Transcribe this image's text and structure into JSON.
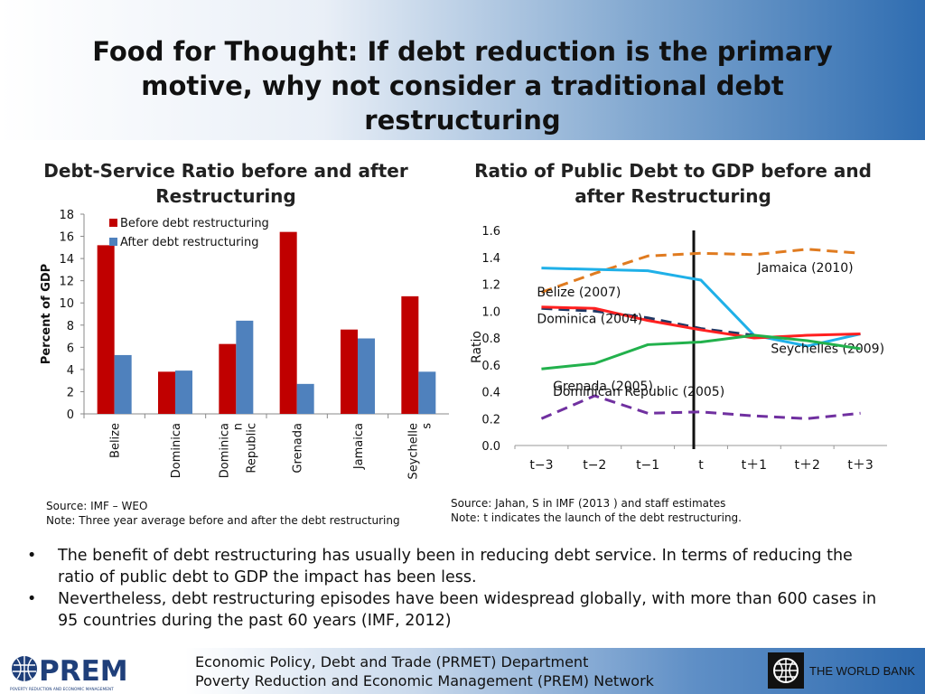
{
  "slide": {
    "title": "Food for Thought: If debt  reduction is the primary motive, why not  consider a traditional debt restructuring"
  },
  "left_panel": {
    "title": "Debt-Service Ratio before and after Restructuring",
    "source": "Source: IMF – WEO",
    "note": "Note: Three year average before and after the debt restructuring"
  },
  "right_panel": {
    "title": "Ratio of Public Debt to GDP before and after Restructuring",
    "source": "Source: Jahan, S in IMF (2013 ) and staff estimates",
    "note": "Note: t indicates the launch of the debt restructuring."
  },
  "chart_data": [
    {
      "type": "bar",
      "title": "Debt-Service Ratio before and after Restructuring",
      "ylabel": "Percent of GDP",
      "xlabel": "",
      "ylim": [
        0,
        18
      ],
      "yticks": [
        0,
        2,
        4,
        6,
        8,
        10,
        12,
        14,
        16,
        18
      ],
      "categories": [
        "Belize",
        "Dominica",
        "Dominican Republic",
        "Grenada",
        "Jamaica",
        "Seychelles"
      ],
      "category_labels": [
        [
          "Belize"
        ],
        [
          "Dominica"
        ],
        [
          "Dominica",
          "n",
          "Republic"
        ],
        [
          "Grenada"
        ],
        [
          "Jamaica"
        ],
        [
          "Seychelle",
          "s"
        ]
      ],
      "series": [
        {
          "name": "Before debt restructuring",
          "color": "#c00000",
          "values": [
            15.2,
            3.8,
            6.3,
            16.4,
            7.6,
            10.6
          ]
        },
        {
          "name": "After debt restructuring",
          "color": "#4f81bd",
          "values": [
            5.3,
            3.9,
            8.4,
            2.7,
            6.8,
            3.8
          ]
        }
      ],
      "legend_position": "top-left",
      "grid": false
    },
    {
      "type": "line",
      "title": "Ratio of Public Debt to GDP before and after Restructuring",
      "ylabel": "Ratio",
      "xlabel": "",
      "x": [
        "t−3",
        "t−2",
        "t−1",
        "t",
        "t＋1",
        "t＋2",
        "t＋3"
      ],
      "ylim": [
        0.0,
        1.6
      ],
      "yticks": [
        "0.0",
        "0.2",
        "0.4",
        "0.6",
        "0.8",
        "1.0",
        "1.2",
        "1.4",
        "1.6"
      ],
      "marker_line_at": "t",
      "series": [
        {
          "name": "Jamaica (2010)",
          "color": "#e07b20",
          "dash": "dashed",
          "values": [
            1.14,
            1.28,
            1.41,
            1.43,
            1.42,
            1.46,
            1.43
          ]
        },
        {
          "name": "Seychelles (2009)",
          "color": "#1fb0e8",
          "dash": "solid",
          "values": [
            1.32,
            1.31,
            1.3,
            1.23,
            0.82,
            0.74,
            0.83
          ]
        },
        {
          "name": "Belize (2007)",
          "color": "#1f3864",
          "dash": "dashed",
          "values": [
            1.02,
            1.0,
            0.95,
            0.87,
            0.82,
            null,
            null
          ]
        },
        {
          "name": "Dominica (2004)",
          "color": "#ff2020",
          "dash": "solid",
          "values": [
            1.03,
            1.02,
            0.93,
            0.86,
            0.8,
            0.82,
            0.83
          ]
        },
        {
          "name": "Grenada (2005)",
          "color": "#22b14c",
          "dash": "solid",
          "values": [
            0.57,
            0.61,
            0.75,
            0.77,
            0.82,
            0.78,
            0.72
          ]
        },
        {
          "name": "Dominican Republic (2005)",
          "color": "#7030a0",
          "dash": "dashed",
          "values": [
            0.2,
            0.37,
            0.24,
            0.25,
            0.22,
            0.2,
            0.24
          ]
        }
      ],
      "grid": false
    }
  ],
  "bullets": [
    "The benefit of debt restructuring  has usually been in reducing debt service. In terms of reducing the ratio of public debt to GDP the impact has been less.",
    "Nevertheless, debt restructuring episodes have been widespread globally, with more than 600 cases in 95 countries during the past 60 years (IMF, 2012)"
  ],
  "footer": {
    "prem_logo": "PREM",
    "prem_tagline": "POVERTY REDUCTION AND ECONOMIC MANAGEMENT",
    "line1": "Economic Policy, Debt and Trade (PRMET) Department",
    "line2": "Poverty Reduction and Economic Management (PREM) Network",
    "worldbank": "THE WORLD BANK"
  }
}
